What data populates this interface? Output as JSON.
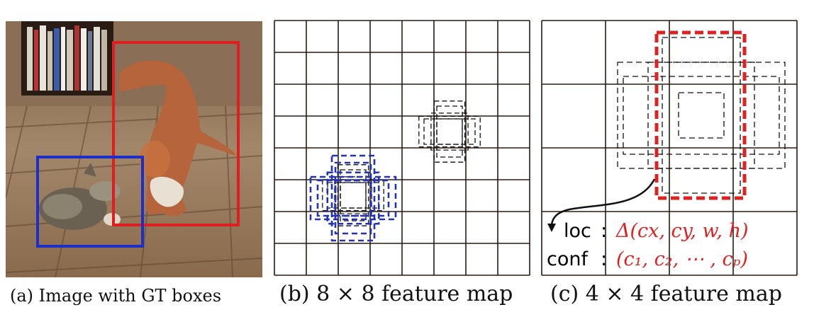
{
  "captions": {
    "a": "(a) Image with GT boxes",
    "b": "(b) 8 × 8 feature map",
    "c": "(c) 4 × 4 feature map"
  },
  "panel_c": {
    "loc_label": "loc",
    "loc_sep": ":",
    "loc_value": "Δ(cx, cy, w, h)",
    "conf_label": "conf",
    "conf_sep": ":",
    "conf_value": "(c₁, c₂, ⋯ , cₚ)"
  },
  "colors": {
    "gt_dog_box": "#e01e1e",
    "gt_cat_box": "#1c2fc8",
    "grid_line": "#2a1a10",
    "matched_default_box_b": "#2233bb",
    "matched_default_box_c": "#dd2222",
    "output_text": "#d22222"
  },
  "grid": {
    "b_cells": 8,
    "c_cells": 4
  }
}
